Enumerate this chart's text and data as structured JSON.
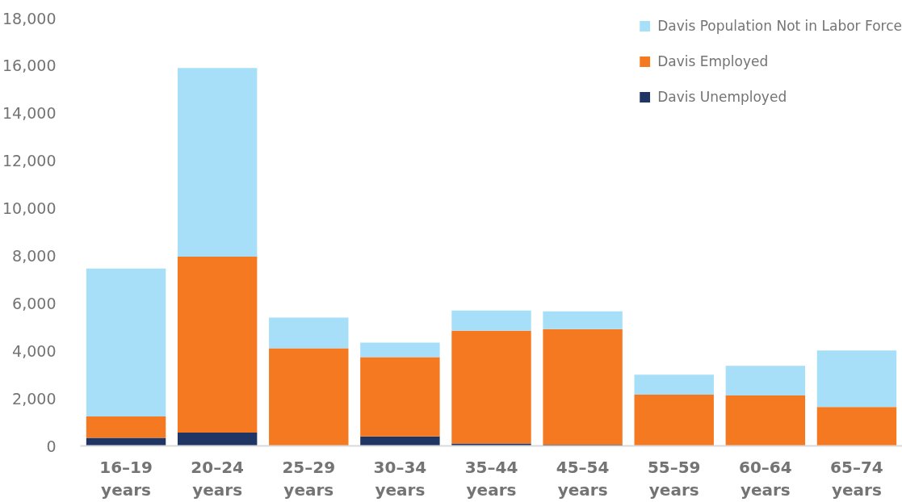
{
  "chart_data": {
    "type": "bar",
    "stacked": true,
    "categories": [
      "16–19 years",
      "20–24 years",
      "25–29 years",
      "30–34 years",
      "35–44 years",
      "45–54 years",
      "55–59 years",
      "60–64 years",
      "65–74 years"
    ],
    "series": [
      {
        "name": "Davis Unemployed",
        "color": "#1f3564",
        "values": [
          340,
          560,
          0,
          400,
          100,
          50,
          0,
          0,
          0
        ]
      },
      {
        "name": "Davis Employed",
        "color": "#f47920",
        "values": [
          900,
          7400,
          4110,
          3340,
          4750,
          4870,
          2160,
          2120,
          1640
        ]
      },
      {
        "name": "Davis Population Not in Labor Force",
        "color": "#a6dff7",
        "values": [
          6220,
          7940,
          1290,
          610,
          850,
          740,
          840,
          1250,
          2380
        ]
      }
    ],
    "ylim": [
      0,
      18000
    ],
    "yticks": [
      0,
      {
        "value": 2000,
        "label": "2,000"
      },
      {
        "value": 4000,
        "label": "4,000"
      },
      {
        "value": 6000,
        "label": "6,000"
      },
      {
        "value": 8000,
        "label": "8,000"
      },
      {
        "value": 10000,
        "label": "10,000"
      },
      {
        "value": 12000,
        "label": "12,000"
      },
      {
        "value": 14000,
        "label": "14,000"
      },
      {
        "value": 16000,
        "label": "16,000"
      },
      {
        "value": 18000,
        "label": "18,000"
      }
    ],
    "legend": "top right"
  }
}
